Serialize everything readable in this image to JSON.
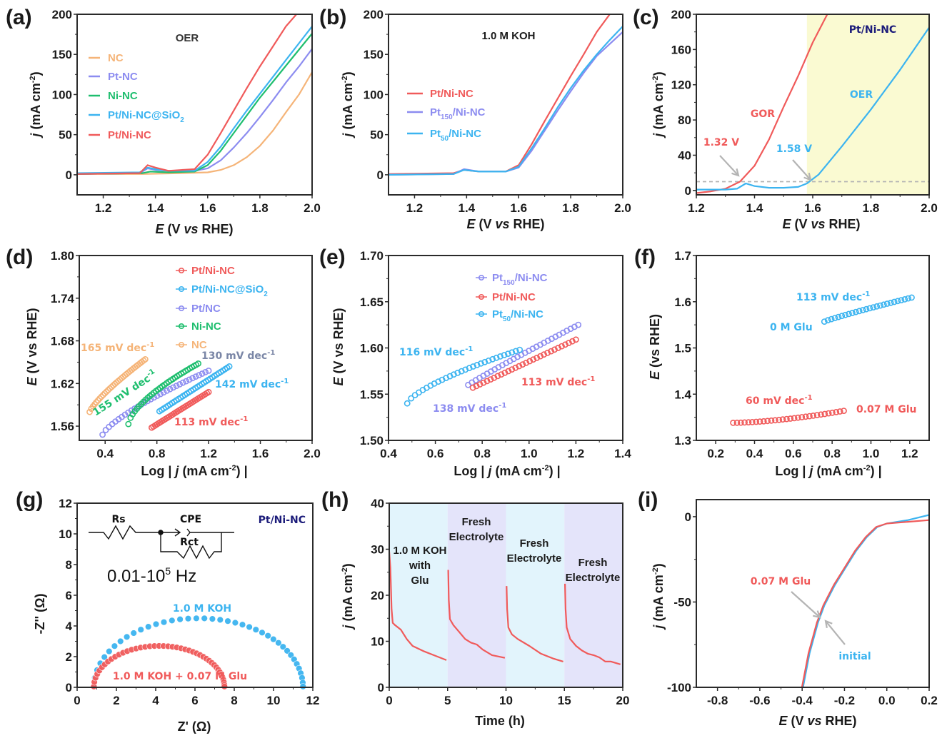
{
  "colors": {
    "red": "#f05a5a",
    "blue": "#3cb4f0",
    "purple": "#8c8cf0",
    "green": "#1ebe6e",
    "orange": "#f5b478",
    "slate": "#7a86a6",
    "navy": "#1c1c7a",
    "gray": "#b4b4b4",
    "yellow_bg": "#fafad2",
    "cyan_bg": "#e2f4fc",
    "lavender_bg": "#e4e4fa"
  },
  "chart_data": [
    {
      "id": "a",
      "panel_label": "(a)",
      "type": "line",
      "title": "OER",
      "xlabel": "E (V vs RHE)",
      "ylabel": "j (mA cm-2)",
      "xlim": [
        1.1,
        2.0
      ],
      "ylim": [
        -25,
        200
      ],
      "xticks": [
        1.2,
        1.4,
        1.6,
        1.8,
        2.0
      ],
      "xtick_labels": [
        "1.2",
        "1.4",
        "1.6",
        "1.8",
        "2.0"
      ],
      "yticks": [
        0,
        50,
        100,
        150,
        200
      ],
      "ytick_labels": [
        "0",
        "50",
        "100",
        "150",
        "200"
      ],
      "legend_position": "middle-left",
      "series": [
        {
          "name": "NC",
          "color": "orange",
          "x": [
            1.1,
            1.35,
            1.5,
            1.6,
            1.65,
            1.7,
            1.75,
            1.8,
            1.85,
            1.9,
            1.95,
            2.0
          ],
          "y": [
            1,
            1,
            2,
            3,
            6,
            12,
            22,
            36,
            55,
            78,
            100,
            128
          ]
        },
        {
          "name": "Pt-NC",
          "color": "purple",
          "x": [
            1.1,
            1.34,
            1.37,
            1.4,
            1.45,
            1.55,
            1.6,
            1.65,
            1.7,
            1.75,
            1.8,
            1.85,
            1.9,
            1.95,
            2.0
          ],
          "y": [
            1,
            2,
            8,
            6,
            5,
            5,
            8,
            18,
            34,
            52,
            72,
            93,
            115,
            135,
            157
          ]
        },
        {
          "name": "Ni-NC",
          "color": "green",
          "x": [
            1.1,
            1.35,
            1.38,
            1.45,
            1.55,
            1.6,
            1.65,
            1.7,
            1.75,
            1.8,
            1.85,
            1.9,
            1.95,
            2.0
          ],
          "y": [
            1,
            2,
            4,
            3,
            4,
            12,
            30,
            52,
            74,
            96,
            116,
            136,
            156,
            176
          ]
        },
        {
          "name": "Pt/Ni-NC@SiO2",
          "color": "blue",
          "x": [
            1.1,
            1.34,
            1.37,
            1.4,
            1.45,
            1.55,
            1.6,
            1.65,
            1.7,
            1.75,
            1.8,
            1.85,
            1.9,
            1.95,
            2.0
          ],
          "y": [
            2,
            3,
            9,
            7,
            5,
            5,
            16,
            35,
            58,
            80,
            101,
            122,
            143,
            164,
            185
          ]
        },
        {
          "name": "Pt/Ni-NC",
          "color": "red",
          "x": [
            1.1,
            1.34,
            1.37,
            1.4,
            1.45,
            1.55,
            1.6,
            1.65,
            1.7,
            1.75,
            1.8,
            1.85,
            1.9,
            1.94
          ],
          "y": [
            1,
            2,
            12,
            9,
            5,
            7,
            25,
            52,
            80,
            108,
            135,
            160,
            185,
            200
          ]
        }
      ]
    },
    {
      "id": "b",
      "panel_label": "(b)",
      "type": "line",
      "title": "1.0 M KOH",
      "xlabel": "E (V vs RHE)",
      "ylabel": "j (mA cm-2)",
      "xlim": [
        1.1,
        2.0
      ],
      "ylim": [
        -25,
        200
      ],
      "xticks": [
        1.2,
        1.4,
        1.6,
        1.8,
        2.0
      ],
      "xtick_labels": [
        "1.2",
        "1.4",
        "1.6",
        "1.8",
        "2.0"
      ],
      "yticks": [
        0,
        50,
        100,
        150,
        200
      ],
      "ytick_labels": [
        "0",
        "50",
        "100",
        "150",
        "200"
      ],
      "legend_position": "middle-left",
      "series": [
        {
          "name": "Pt/Ni-NC",
          "color": "red",
          "x": [
            1.1,
            1.35,
            1.39,
            1.45,
            1.55,
            1.6,
            1.65,
            1.7,
            1.75,
            1.8,
            1.85,
            1.9,
            1.95
          ],
          "y": [
            1,
            2,
            6,
            4,
            4,
            12,
            38,
            67,
            95,
            123,
            150,
            178,
            200
          ]
        },
        {
          "name": "Pt150/Ni-NC",
          "color": "purple",
          "x": [
            1.1,
            1.35,
            1.39,
            1.45,
            1.55,
            1.6,
            1.65,
            1.7,
            1.75,
            1.8,
            1.85,
            1.9,
            1.95,
            2.0
          ],
          "y": [
            0,
            1,
            7,
            4,
            4,
            9,
            30,
            55,
            80,
            104,
            127,
            148,
            163,
            178
          ]
        },
        {
          "name": "Pt50/Ni-NC",
          "color": "blue",
          "x": [
            1.1,
            1.35,
            1.39,
            1.45,
            1.55,
            1.6,
            1.65,
            1.7,
            1.75,
            1.8,
            1.85,
            1.9,
            1.95,
            2.0
          ],
          "y": [
            0,
            1,
            6,
            4,
            4,
            10,
            33,
            58,
            84,
            108,
            130,
            150,
            168,
            185
          ]
        }
      ]
    },
    {
      "id": "c",
      "panel_label": "(c)",
      "type": "line",
      "title": "Pt/Ni-NC",
      "xlabel": "E (V vs RHE)",
      "ylabel": "j (mA cm-2)",
      "xlim": [
        1.2,
        2.0
      ],
      "ylim": [
        -5,
        200
      ],
      "xticks": [
        1.2,
        1.4,
        1.6,
        1.8,
        2.0
      ],
      "xtick_labels": [
        "1.2",
        "1.4",
        "1.6",
        "1.8",
        "2.0"
      ],
      "yticks": [
        0,
        40,
        80,
        120,
        160,
        200
      ],
      "ytick_labels": [
        "0",
        "40",
        "80",
        "120",
        "160",
        "200"
      ],
      "shaded_region_x": [
        1.58,
        2.0
      ],
      "reference_line_y": 10,
      "annotations": [
        {
          "text": "GOR",
          "color": "red"
        },
        {
          "text": "OER",
          "color": "blue"
        },
        {
          "text": "1.32 V",
          "color": "red"
        },
        {
          "text": "1.58 V",
          "color": "blue"
        }
      ],
      "series": [
        {
          "name": "GOR",
          "color": "red",
          "x": [
            1.2,
            1.25,
            1.3,
            1.35,
            1.4,
            1.45,
            1.5,
            1.55,
            1.6,
            1.65
          ],
          "y": [
            -3,
            -1,
            2,
            10,
            28,
            58,
            95,
            130,
            168,
            200
          ]
        },
        {
          "name": "OER",
          "color": "blue",
          "x": [
            1.2,
            1.3,
            1.34,
            1.37,
            1.4,
            1.45,
            1.5,
            1.55,
            1.58,
            1.62,
            1.7,
            1.8,
            1.9,
            2.0
          ],
          "y": [
            1,
            1,
            2,
            8,
            5,
            3,
            3,
            4,
            8,
            18,
            50,
            92,
            137,
            185
          ]
        }
      ]
    },
    {
      "id": "d",
      "panel_label": "(d)",
      "type": "scatter",
      "xlabel": "Log|j (mA cm-2)|",
      "ylabel": "E (V vs RHE)",
      "xlim": [
        0.2,
        2.0
      ],
      "ylim": [
        1.54,
        1.8
      ],
      "xticks": [
        0.4,
        0.8,
        1.2,
        1.6,
        2.0
      ],
      "xtick_labels": [
        "0.4",
        "0.8",
        "1.2",
        "1.6",
        "2.0"
      ],
      "yticks": [
        1.56,
        1.62,
        1.68,
        1.74,
        1.8
      ],
      "ytick_labels": [
        "1.56",
        "1.62",
        "1.68",
        "1.74",
        "1.80"
      ],
      "legend_position": "top-right",
      "series": [
        {
          "name": "Pt/Ni-NC",
          "color": "red",
          "x_range": [
            0.76,
            1.2
          ],
          "y_range": [
            1.558,
            1.608
          ],
          "tafel": "113 mV dec-1"
        },
        {
          "name": "Pt/Ni-NC@SiO2",
          "color": "blue",
          "x_range": [
            0.82,
            1.36
          ],
          "y_range": [
            1.581,
            1.644
          ],
          "tafel": "142 mV dec-1"
        },
        {
          "name": "Pt/NC",
          "color": "purple",
          "x_range": [
            0.38,
            1.2
          ],
          "y_range": [
            1.548,
            1.638
          ],
          "tafel": "130 mV dec-1"
        },
        {
          "name": "Ni-NC",
          "color": "green",
          "x_range": [
            0.58,
            1.12
          ],
          "y_range": [
            1.563,
            1.648
          ],
          "tafel": "155 mV dec-1"
        },
        {
          "name": "NC",
          "color": "orange",
          "x_range": [
            0.28,
            0.71
          ],
          "y_range": [
            1.58,
            1.654
          ],
          "tafel": "165 mV dec-1"
        }
      ]
    },
    {
      "id": "e",
      "panel_label": "(e)",
      "type": "scatter",
      "xlabel": "Log|j (mA cm-2)|",
      "ylabel": "E (V vs RHE)",
      "xlim": [
        0.4,
        1.4
      ],
      "ylim": [
        1.5,
        1.7
      ],
      "xticks": [
        0.4,
        0.6,
        0.8,
        1.0,
        1.2,
        1.4
      ],
      "xtick_labels": [
        "0.4",
        "0.6",
        "0.8",
        "1.0",
        "1.2",
        "1.4"
      ],
      "yticks": [
        1.5,
        1.55,
        1.6,
        1.65,
        1.7
      ],
      "ytick_labels": [
        "1.50",
        "1.55",
        "1.60",
        "1.65",
        "1.70"
      ],
      "legend_position": "top-center",
      "series": [
        {
          "name": "Pt150/Ni-NC",
          "color": "purple",
          "x_range": [
            0.74,
            1.21
          ],
          "y_range": [
            1.56,
            1.625
          ],
          "tafel": "138 mV dec-1"
        },
        {
          "name": "Pt/Ni-NC",
          "color": "red",
          "x_range": [
            0.76,
            1.2
          ],
          "y_range": [
            1.557,
            1.609
          ],
          "tafel": "113 mV dec-1"
        },
        {
          "name": "Pt50/Ni-NC",
          "color": "blue",
          "x_range": [
            0.48,
            0.96
          ],
          "y_range": [
            1.54,
            1.598
          ],
          "tafel": "116 mV dec-1"
        }
      ]
    },
    {
      "id": "f",
      "panel_label": "(f)",
      "type": "scatter",
      "xlabel": "Log|j (mA cm-2)|",
      "ylabel": "E (vs RHE)",
      "xlim": [
        0.1,
        1.3
      ],
      "ylim": [
        1.3,
        1.7
      ],
      "xticks": [
        0.2,
        0.4,
        0.6,
        0.8,
        1.0,
        1.2
      ],
      "xtick_labels": [
        "0.2",
        "0.4",
        "0.6",
        "0.8",
        "1.0",
        "1.2"
      ],
      "yticks": [
        1.3,
        1.4,
        1.5,
        1.6,
        1.7
      ],
      "ytick_labels": [
        "1.3",
        "1.4",
        "1.5",
        "1.6",
        "1.7"
      ],
      "series": [
        {
          "name": "0 M Glu",
          "color": "blue",
          "x_range": [
            0.76,
            1.21
          ],
          "y_range": [
            1.557,
            1.609
          ],
          "tafel": "113 mV dec-1"
        },
        {
          "name": "0.07 M Glu",
          "color": "red",
          "x_range": [
            0.29,
            0.86
          ],
          "y_range": [
            1.338,
            1.364
          ],
          "tafel": "60 mV dec-1"
        }
      ]
    },
    {
      "id": "g",
      "panel_label": "(g)",
      "type": "scatter",
      "title": "Pt/Ni-NC",
      "xlabel": "Z' (Ω)",
      "ylabel": "-Z'' (Ω)",
      "xlim": [
        0,
        12
      ],
      "ylim": [
        0,
        12
      ],
      "xticks": [
        0,
        2,
        4,
        6,
        8,
        10,
        12
      ],
      "xtick_labels": [
        "0",
        "2",
        "4",
        "6",
        "8",
        "10",
        "12"
      ],
      "yticks": [
        0,
        2,
        4,
        6,
        8,
        10,
        12
      ],
      "ytick_labels": [
        "0",
        "2",
        "4",
        "6",
        "8",
        "10",
        "12"
      ],
      "circuit": {
        "labels": [
          "Rs",
          "CPE",
          "Rct"
        ]
      },
      "frequency_range": "0.01-10^5 Hz",
      "series": [
        {
          "name": "1.0 M KOH",
          "color": "blue",
          "arc_start": 0.85,
          "arc_end": 11.5,
          "peak": 4.5
        },
        {
          "name": "1.0 M KOH + 0.07 M Glu",
          "color": "red",
          "arc_start": 0.85,
          "arc_end": 7.5,
          "peak": 2.7
        }
      ]
    },
    {
      "id": "h",
      "panel_label": "(h)",
      "type": "line",
      "xlabel": "Time (h)",
      "ylabel": "j (mA cm-2)",
      "xlim": [
        0,
        20
      ],
      "ylim": [
        0,
        40
      ],
      "xticks": [
        0,
        5,
        10,
        15,
        20
      ],
      "xtick_labels": [
        "0",
        "5",
        "10",
        "15",
        "20"
      ],
      "yticks": [
        0,
        10,
        20,
        30,
        40
      ],
      "ytick_labels": [
        "0",
        "10",
        "20",
        "30",
        "40"
      ],
      "segments": [
        {
          "label": [
            "1.0 M KOH",
            "with",
            "Glu"
          ],
          "bg": "cyan_bg",
          "t": [
            0,
            0.1,
            0.2,
            0.3,
            0.5,
            1,
            1.5,
            2,
            3,
            4,
            4.9
          ],
          "j": [
            29.5,
            26,
            17,
            14,
            13.5,
            12.5,
            10.5,
            9,
            7.8,
            6.8,
            5.9
          ]
        },
        {
          "label": [
            "Fresh",
            "Electrolyte"
          ],
          "bg": "lavender_bg",
          "t": [
            5.05,
            5.1,
            5.2,
            5.5,
            6,
            6.5,
            7,
            7.5,
            8,
            8.8,
            9.9
          ],
          "j": [
            25.5,
            19,
            14.8,
            13.5,
            12,
            10.5,
            9.7,
            9.3,
            8.2,
            7,
            6.4
          ]
        },
        {
          "label": [
            "Fresh",
            "Electrolyte"
          ],
          "bg": "cyan_bg",
          "t": [
            10.05,
            10.1,
            10.2,
            10.5,
            11,
            12,
            13,
            14,
            14.9
          ],
          "j": [
            22,
            17,
            13,
            11.5,
            10.5,
            9,
            7.3,
            6.3,
            5.6
          ]
        },
        {
          "label": [
            "Fresh",
            "Electrolyte"
          ],
          "bg": "lavender_bg",
          "t": [
            15.05,
            15.1,
            15.2,
            15.5,
            16,
            16.5,
            17,
            17.5,
            18,
            18.5,
            19,
            19.8
          ],
          "j": [
            22.5,
            17,
            13,
            10.5,
            9,
            8,
            7.3,
            7,
            6.5,
            5.6,
            5.6,
            5
          ]
        }
      ]
    },
    {
      "id": "i",
      "panel_label": "(i)",
      "type": "line",
      "xlabel": "E (V vs RHE)",
      "ylabel": "j (mA cm-2)",
      "xlim": [
        -0.9,
        0.2
      ],
      "ylim": [
        -100,
        10
      ],
      "xticks": [
        -0.8,
        -0.6,
        -0.4,
        -0.2,
        0.0,
        0.2
      ],
      "xtick_labels": [
        "-0.8",
        "-0.6",
        "-0.4",
        "-0.2",
        "0.0",
        "0.2"
      ],
      "yticks": [
        -100,
        -50,
        0
      ],
      "ytick_labels": [
        "-100",
        "-50",
        "0"
      ],
      "series": [
        {
          "name": "0.07 M Glu",
          "color": "red",
          "x": [
            -0.401,
            -0.37,
            -0.33,
            -0.3,
            -0.25,
            -0.2,
            -0.15,
            -0.1,
            -0.05,
            0.0,
            0.05,
            0.1,
            0.2
          ],
          "y": [
            -100,
            -80,
            -62,
            -52,
            -40,
            -30,
            -20,
            -12,
            -6,
            -4,
            -3.5,
            -3,
            -2
          ]
        },
        {
          "name": "initial",
          "color": "blue",
          "x": [
            -0.396,
            -0.365,
            -0.325,
            -0.295,
            -0.245,
            -0.195,
            -0.145,
            -0.095,
            -0.045,
            0.0,
            0.05,
            0.1,
            0.2
          ],
          "y": [
            -100,
            -80,
            -62,
            -52,
            -40,
            -30,
            -20,
            -12,
            -6,
            -4,
            -3,
            -2,
            1
          ]
        }
      ],
      "annotations": [
        {
          "text": "0.07 M Glu",
          "color": "red"
        },
        {
          "text": "initial",
          "color": "blue"
        }
      ]
    }
  ]
}
